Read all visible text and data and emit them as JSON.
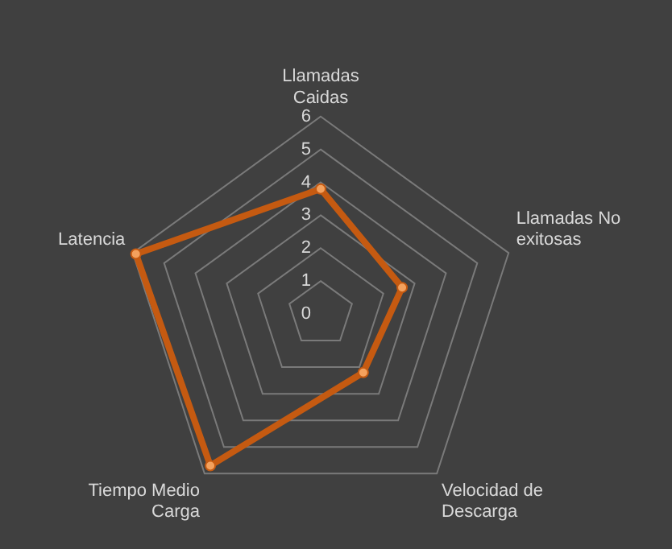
{
  "chart_data": {
    "type": "radar",
    "categories": [
      "Llamadas Caidas",
      "Llamadas No exitosas",
      "Velocidad de Descarga",
      "Tiempo Medio Carga",
      "Latencia"
    ],
    "ylim": [
      0,
      6
    ],
    "yticks": [
      0,
      1,
      2,
      3,
      4,
      5,
      6
    ],
    "grid": true,
    "marker": "circle",
    "legend": false,
    "series": [
      {
        "color": "#c55a11",
        "values": [
          3.8,
          2.6,
          2.2,
          5.7,
          5.9
        ]
      }
    ]
  }
}
